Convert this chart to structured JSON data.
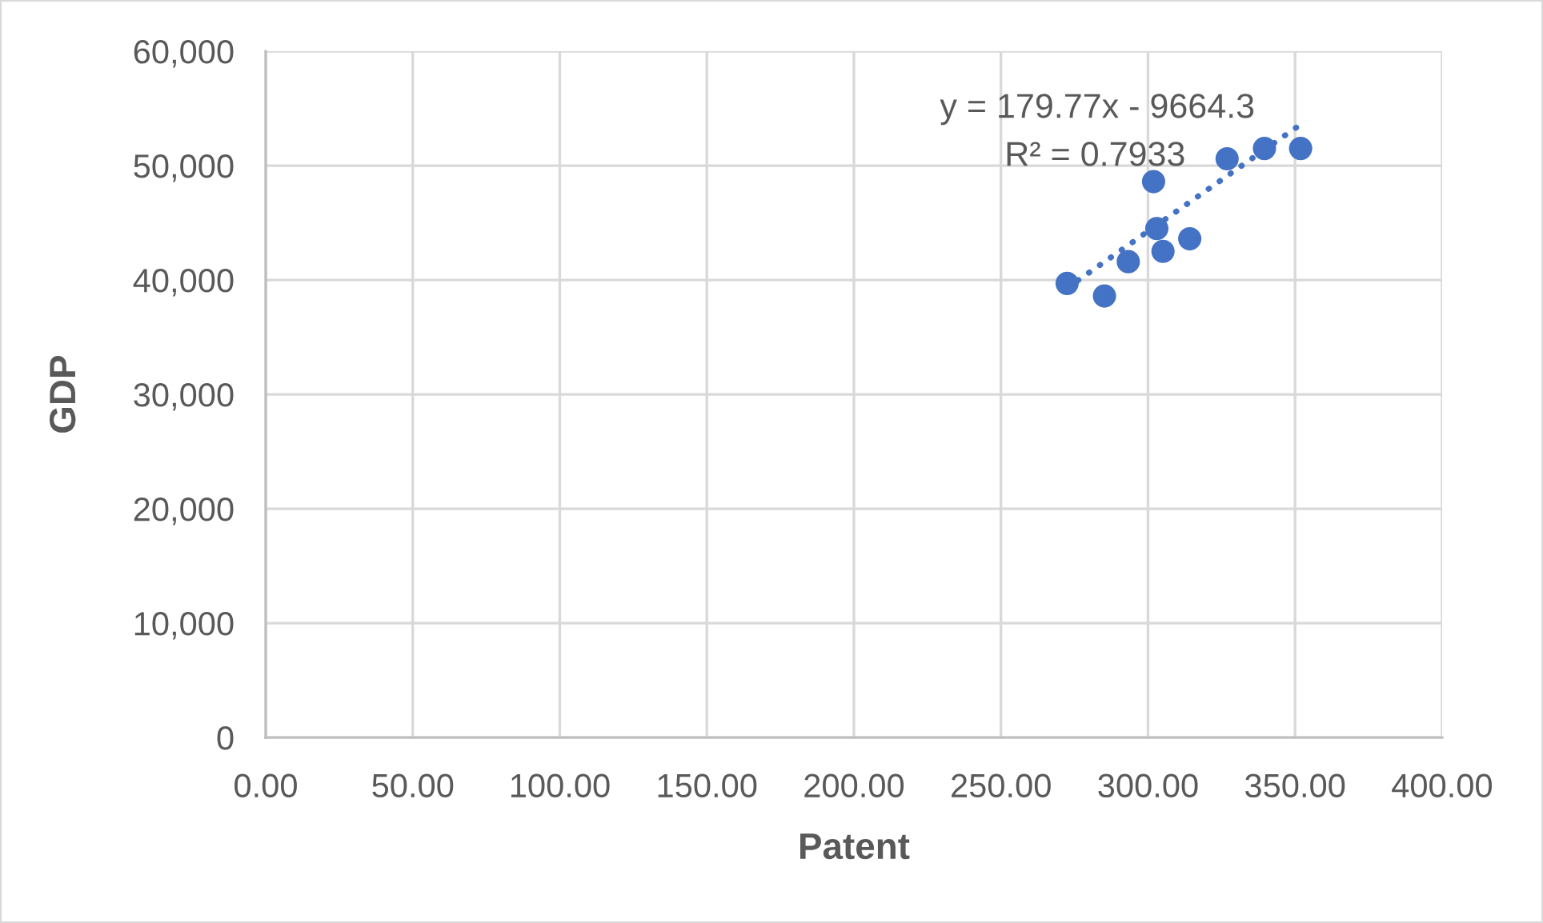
{
  "chart_data": {
    "type": "scatter",
    "xlabel": "Patent",
    "ylabel": "GDP",
    "series": [
      {
        "color": "#4472c4",
        "marker": "circle",
        "x": [
          272.5,
          285.2,
          293.3,
          301.9,
          303.0,
          305.1,
          314.2,
          326.9,
          339.6,
          351.9
        ],
        "values": [
          39700,
          38600,
          41600,
          48600,
          44500,
          42500,
          43600,
          50600,
          51500,
          51500
        ]
      },
      {
        "type": "line",
        "color": "#4472c4",
        "line_style": "dotted",
        "x": [
          272.5,
          351.9
        ],
        "values": [
          39300,
          53600
        ]
      }
    ],
    "annotations": [
      "y = 179.77x - 9664.3",
      "R² = 0.7933"
    ],
    "xlim": [
      0,
      400
    ],
    "xticks": [
      {
        "value": 0,
        "label": "0.00"
      },
      {
        "value": 50,
        "label": "50.00"
      },
      {
        "value": 100,
        "label": "100.00"
      },
      {
        "value": 150,
        "label": "150.00"
      },
      {
        "value": 200,
        "label": "200.00"
      },
      {
        "value": 250,
        "label": "250.00"
      },
      {
        "value": 300,
        "label": "300.00"
      },
      {
        "value": 350,
        "label": "350.00"
      },
      {
        "value": 400,
        "label": "400.00"
      }
    ],
    "ylim": [
      0,
      60000
    ],
    "yticks": [
      0,
      {
        "value": 10000,
        "label": "10,000"
      },
      {
        "value": 20000,
        "label": "20,000"
      },
      {
        "value": 30000,
        "label": "30,000"
      },
      {
        "value": 40000,
        "label": "40,000"
      },
      {
        "value": 50000,
        "label": "50,000"
      },
      {
        "value": 60000,
        "label": "60,000"
      }
    ],
    "grid": true
  }
}
